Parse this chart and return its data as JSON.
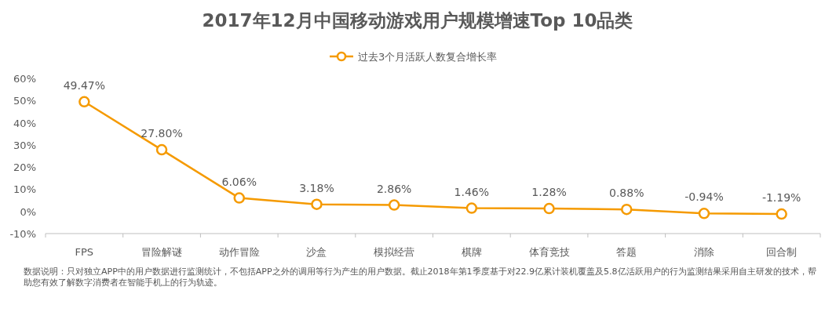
{
  "chart_data": {
    "type": "line",
    "title": "2017年12月中国移动游戏用户规模增速Top 10品类",
    "categories": [
      "FPS",
      "冒险解谜",
      "动作冒险",
      "沙盒",
      "模拟经营",
      "棋牌",
      "体育竞技",
      "答题",
      "消除",
      "回合制"
    ],
    "series": [
      {
        "name": "过去3个月活跃人数复合增长率",
        "color": "#f59a00",
        "values": [
          49.47,
          27.8,
          6.06,
          3.18,
          2.86,
          1.46,
          1.28,
          0.88,
          -0.94,
          -1.19
        ]
      }
    ],
    "value_labels": [
      "49.47%",
      "27.80%",
      "6.06%",
      "3.18%",
      "2.86%",
      "1.46%",
      "1.28%",
      "0.88%",
      "-0.94%",
      "-1.19%"
    ],
    "ylim": [
      -10,
      60
    ],
    "yticks": [
      {
        "value": -10,
        "label": "-10%"
      },
      {
        "value": 0,
        "label": "0%"
      },
      {
        "value": 10,
        "label": "10%"
      },
      {
        "value": 20,
        "label": "20%"
      },
      {
        "value": 30,
        "label": "30%"
      },
      {
        "value": 40,
        "label": "40%"
      },
      {
        "value": 50,
        "label": "50%"
      },
      {
        "value": 60,
        "label": "60%"
      }
    ],
    "grid": false,
    "legend": "top",
    "marker": "circle",
    "line_style": "solid",
    "annotations": [
      "数据说明：只对独立APP中的用户数据进行监测统计，不包括APP之外的调用等行为产生的用户数据。截止2018年第1季度基于对22.9亿累计装机覆盖及5.8亿活跃用户的行为监测结果采用自主研发的技术，帮助您有效了解数字消费者在智能手机上的行为轨迹。"
    ]
  }
}
